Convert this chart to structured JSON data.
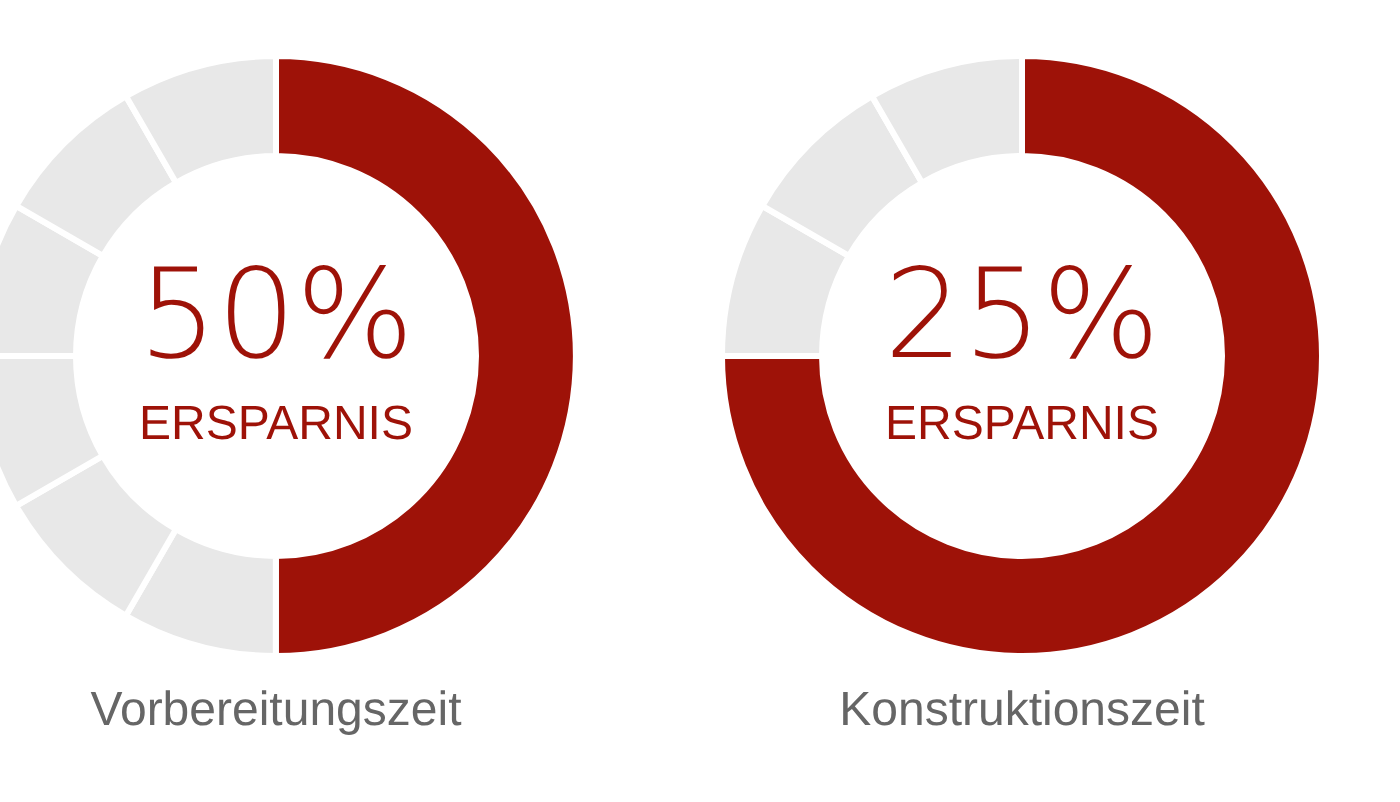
{
  "chart_data": [
    {
      "type": "donut",
      "title": "50%",
      "subtitle": "ERSPARNIS",
      "xlabel": "Vorbereitungszeit",
      "categories": [
        null,
        null,
        null,
        null,
        null,
        null,
        null
      ],
      "values": [
        50,
        8.33,
        8.33,
        8.33,
        8.33,
        8.33,
        8.33
      ],
      "colors": [
        "#9e1208",
        "#e8e8e8",
        "#e8e8e8",
        "#e8e8e8",
        "#e8e8e8",
        "#e8e8e8",
        "#e8e8e8"
      ]
    },
    {
      "type": "donut",
      "title": "25%",
      "subtitle": "ERSPARNIS",
      "xlabel": "Konstruktionszeit",
      "categories": [
        null,
        null,
        null,
        null
      ],
      "values": [
        75,
        8.33,
        8.33,
        8.33
      ],
      "colors": [
        "#9e1208",
        "#e8e8e8",
        "#e8e8e8",
        "#e8e8e8"
      ]
    }
  ]
}
